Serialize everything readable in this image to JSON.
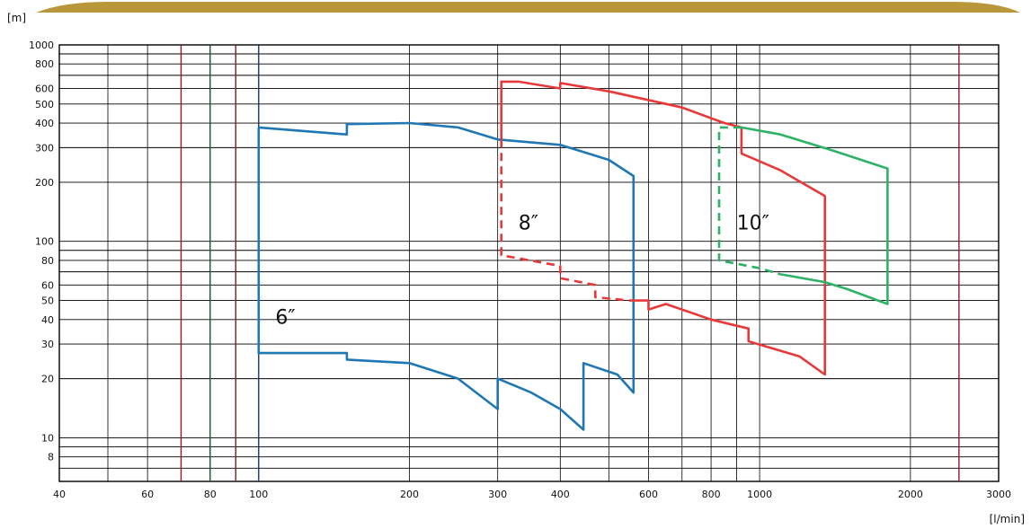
{
  "chart_data": {
    "type": "line",
    "title": "",
    "x_unit": "[l/min]",
    "y_unit": "[m]",
    "x_scale": "log",
    "y_scale": "log",
    "xlim": [
      40,
      3000
    ],
    "ylim": [
      6,
      1000
    ],
    "x_ticks": [
      40,
      60,
      80,
      100,
      200,
      300,
      400,
      600,
      800,
      1000,
      2000,
      3000
    ],
    "y_ticks": [
      8,
      10,
      20,
      30,
      40,
      50,
      60,
      80,
      100,
      200,
      300,
      400,
      500,
      600,
      800,
      1000
    ],
    "grid": true,
    "series": [
      {
        "name": "6″",
        "color": "#1f77b4",
        "label_at": [
          108,
          38
        ],
        "segments": [
          {
            "dashed": false,
            "points": [
              [
                100,
                380
              ],
              [
                150,
                350
              ],
              [
                150,
                395
              ],
              [
                200,
                400
              ],
              [
                250,
                380
              ],
              [
                300,
                330
              ],
              [
                400,
                310
              ],
              [
                500,
                260
              ],
              [
                560,
                215
              ],
              [
                560,
                17
              ],
              [
                520,
                21
              ],
              [
                445,
                24
              ],
              [
                445,
                11
              ],
              [
                400,
                14
              ],
              [
                350,
                17
              ],
              [
                300,
                20
              ],
              [
                300,
                14
              ],
              [
                250,
                20
              ],
              [
                200,
                24
              ],
              [
                150,
                25
              ],
              [
                150,
                27
              ],
              [
                100,
                27
              ],
              [
                100,
                380
              ]
            ]
          }
        ]
      },
      {
        "name": "8″",
        "color": "#e8393a",
        "label_at": [
          330,
          115
        ],
        "segments": [
          {
            "dashed": false,
            "points": [
              [
                305,
                330
              ],
              [
                305,
                650
              ],
              [
                330,
                650
              ],
              [
                400,
                600
              ],
              [
                400,
                640
              ],
              [
                500,
                580
              ],
              [
                700,
                480
              ],
              [
                850,
                400
              ],
              [
                920,
                380
              ],
              [
                920,
                280
              ],
              [
                1100,
                230
              ],
              [
                1350,
                170
              ],
              [
                1350,
                21
              ],
              [
                1200,
                26
              ],
              [
                950,
                31
              ],
              [
                950,
                36
              ],
              [
                800,
                40
              ],
              [
                650,
                48
              ],
              [
                600,
                45
              ],
              [
                600,
                50
              ],
              [
                550,
                50
              ]
            ]
          },
          {
            "dashed": true,
            "points": [
              [
                305,
                330
              ],
              [
                305,
                85
              ],
              [
                400,
                75
              ],
              [
                400,
                65
              ],
              [
                470,
                60
              ],
              [
                470,
                52
              ],
              [
                550,
                50
              ]
            ]
          }
        ]
      },
      {
        "name": "10″",
        "color": "#2db366",
        "label_at": [
          900,
          115
        ],
        "segments": [
          {
            "dashed": false,
            "points": [
              [
                920,
                380
              ],
              [
                1100,
                350
              ],
              [
                1400,
                290
              ],
              [
                1800,
                235
              ],
              [
                1800,
                48
              ],
              [
                1500,
                57
              ],
              [
                1350,
                62
              ],
              [
                1100,
                68
              ]
            ]
          },
          {
            "dashed": true,
            "points": [
              [
                920,
                380
              ],
              [
                830,
                380
              ],
              [
                830,
                80
              ],
              [
                1000,
                73
              ],
              [
                1100,
                68
              ]
            ]
          }
        ]
      }
    ]
  }
}
